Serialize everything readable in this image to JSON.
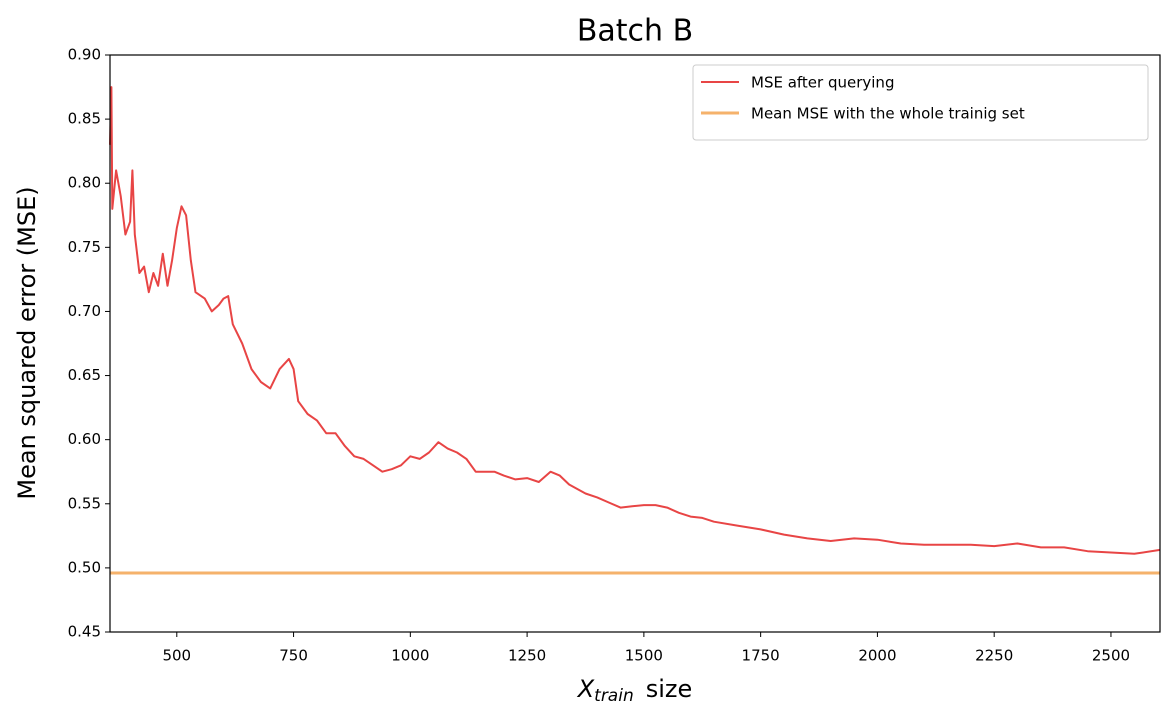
{
  "chart_data": {
    "type": "line",
    "title": "Batch B",
    "xlabel": {
      "main": "X",
      "sub": "train",
      "rest": "size"
    },
    "ylabel": "Mean squared error (MSE)",
    "xlim": [
      357,
      2605
    ],
    "ylim": [
      0.45,
      0.9
    ],
    "xticks": [
      500,
      750,
      1000,
      1250,
      1500,
      1750,
      2000,
      2250,
      2500
    ],
    "yticks": [
      {
        "value": 0.45,
        "label": "0.45"
      },
      {
        "value": 0.5,
        "label": "0.50"
      },
      {
        "value": 0.55,
        "label": "0.55"
      },
      {
        "value": 0.6,
        "label": "0.60"
      },
      {
        "value": 0.65,
        "label": "0.65"
      },
      {
        "value": 0.7,
        "label": "0.70"
      },
      {
        "value": 0.75,
        "label": "0.75"
      },
      {
        "value": 0.8,
        "label": "0.80"
      },
      {
        "value": 0.85,
        "label": "0.85"
      },
      {
        "value": 0.9,
        "label": "0.90"
      }
    ],
    "legend": "upper right",
    "series": [
      {
        "name": "MSE after querying",
        "color": "#e84545",
        "x": [
          357,
          360,
          362,
          370,
          380,
          390,
          400,
          405,
          410,
          420,
          430,
          440,
          450,
          460,
          470,
          480,
          490,
          500,
          510,
          520,
          530,
          540,
          560,
          575,
          590,
          600,
          610,
          620,
          640,
          660,
          680,
          700,
          720,
          740,
          750,
          760,
          780,
          800,
          820,
          840,
          860,
          880,
          900,
          920,
          940,
          960,
          980,
          1000,
          1020,
          1040,
          1060,
          1080,
          1100,
          1120,
          1140,
          1160,
          1180,
          1200,
          1225,
          1250,
          1275,
          1300,
          1320,
          1340,
          1375,
          1400,
          1425,
          1450,
          1475,
          1500,
          1525,
          1550,
          1575,
          1600,
          1625,
          1650,
          1700,
          1750,
          1800,
          1850,
          1900,
          1950,
          2000,
          2050,
          2100,
          2150,
          2200,
          2250,
          2300,
          2350,
          2400,
          2450,
          2500,
          2550,
          2605
        ],
        "values": [
          0.83,
          0.875,
          0.78,
          0.81,
          0.79,
          0.76,
          0.77,
          0.81,
          0.76,
          0.73,
          0.735,
          0.715,
          0.73,
          0.72,
          0.745,
          0.72,
          0.74,
          0.765,
          0.782,
          0.775,
          0.74,
          0.715,
          0.71,
          0.7,
          0.705,
          0.71,
          0.712,
          0.69,
          0.675,
          0.655,
          0.645,
          0.64,
          0.655,
          0.663,
          0.655,
          0.63,
          0.62,
          0.615,
          0.605,
          0.605,
          0.595,
          0.587,
          0.585,
          0.58,
          0.575,
          0.577,
          0.58,
          0.587,
          0.585,
          0.59,
          0.598,
          0.593,
          0.59,
          0.585,
          0.575,
          0.575,
          0.575,
          0.572,
          0.569,
          0.57,
          0.567,
          0.575,
          0.572,
          0.565,
          0.558,
          0.555,
          0.551,
          0.547,
          0.548,
          0.549,
          0.549,
          0.547,
          0.543,
          0.54,
          0.539,
          0.536,
          0.533,
          0.53,
          0.526,
          0.523,
          0.521,
          0.523,
          0.522,
          0.519,
          0.518,
          0.518,
          0.518,
          0.517,
          0.519,
          0.516,
          0.516,
          0.513,
          0.512,
          0.511,
          0.514
        ]
      },
      {
        "name": "Mean MSE with the whole trainig set",
        "color": "#f5b26b",
        "x": [
          357,
          2605
        ],
        "values": [
          0.496,
          0.496
        ]
      }
    ]
  }
}
